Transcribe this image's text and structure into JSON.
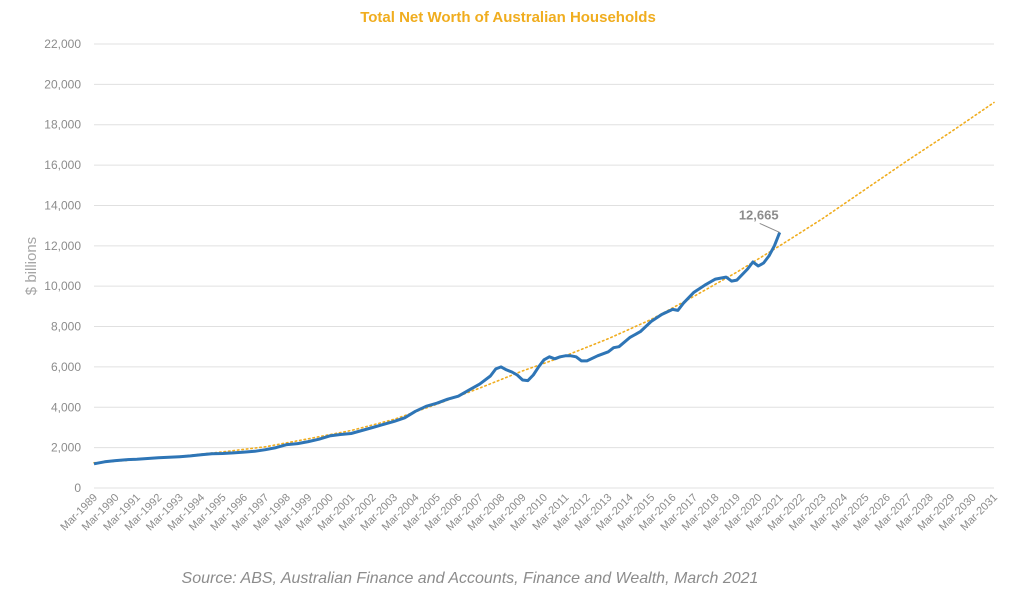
{
  "chart_data": {
    "type": "line",
    "title": "Total Net Worth of Australian Households",
    "ylabel": "$ billions",
    "xlabel": "",
    "source": "Source: ABS, Australian Finance and Accounts, Finance and Wealth, March 2021",
    "ylim": [
      0,
      22000
    ],
    "yticks": [
      "0",
      "2,000",
      "4,000",
      "6,000",
      "8,000",
      "10,000",
      "12,000",
      "14,000",
      "16,000",
      "18,000",
      "20,000",
      "22,000"
    ],
    "ytick_values": [
      0,
      2000,
      4000,
      6000,
      8000,
      10000,
      12000,
      14000,
      16000,
      18000,
      20000,
      22000
    ],
    "x_categories": [
      "Mar-1989",
      "Mar-1990",
      "Mar-1991",
      "Mar-1992",
      "Mar-1993",
      "Mar-1994",
      "Mar-1995",
      "Mar-1996",
      "Mar-1997",
      "Mar-1998",
      "Mar-1999",
      "Mar-2000",
      "Mar-2001",
      "Mar-2002",
      "Mar-2003",
      "Mar-2004",
      "Mar-2005",
      "Mar-2006",
      "Mar-2007",
      "Mar-2008",
      "Mar-2009",
      "Mar-2010",
      "Mar-2011",
      "Mar-2012",
      "Mar-2013",
      "Mar-2014",
      "Mar-2015",
      "Mar-2016",
      "Mar-2017",
      "Mar-2018",
      "Mar-2019",
      "Mar-2020",
      "Mar-2021",
      "Mar-2022",
      "Mar-2023",
      "Mar-2024",
      "Mar-2025",
      "Mar-2026",
      "Mar-2027",
      "Mar-2028",
      "Mar-2029",
      "Mar-2030",
      "Mar-2031"
    ],
    "grid": true,
    "series": [
      {
        "kind": "actual",
        "color": "#2e75b6",
        "points": [
          [
            1989.0,
            1200
          ],
          [
            1989.5,
            1300
          ],
          [
            1990.0,
            1360
          ],
          [
            1990.5,
            1400
          ],
          [
            1991.0,
            1420
          ],
          [
            1991.5,
            1460
          ],
          [
            1992.0,
            1500
          ],
          [
            1992.5,
            1520
          ],
          [
            1993.0,
            1550
          ],
          [
            1993.5,
            1590
          ],
          [
            1994.0,
            1650
          ],
          [
            1994.5,
            1700
          ],
          [
            1995.0,
            1710
          ],
          [
            1995.5,
            1740
          ],
          [
            1996.0,
            1780
          ],
          [
            1996.5,
            1820
          ],
          [
            1997.0,
            1900
          ],
          [
            1997.5,
            2000
          ],
          [
            1998.0,
            2150
          ],
          [
            1998.5,
            2200
          ],
          [
            1999.0,
            2300
          ],
          [
            1999.5,
            2420
          ],
          [
            2000.0,
            2580
          ],
          [
            2000.5,
            2650
          ],
          [
            2001.0,
            2700
          ],
          [
            2001.5,
            2850
          ],
          [
            2002.0,
            3000
          ],
          [
            2002.5,
            3150
          ],
          [
            2003.0,
            3300
          ],
          [
            2003.5,
            3480
          ],
          [
            2004.0,
            3800
          ],
          [
            2004.5,
            4050
          ],
          [
            2005.0,
            4200
          ],
          [
            2005.5,
            4400
          ],
          [
            2006.0,
            4550
          ],
          [
            2006.5,
            4850
          ],
          [
            2007.0,
            5150
          ],
          [
            2007.5,
            5550
          ],
          [
            2007.75,
            5900
          ],
          [
            2008.0,
            6000
          ],
          [
            2008.25,
            5850
          ],
          [
            2008.5,
            5750
          ],
          [
            2008.75,
            5600
          ],
          [
            2009.0,
            5350
          ],
          [
            2009.25,
            5320
          ],
          [
            2009.5,
            5600
          ],
          [
            2009.75,
            6000
          ],
          [
            2010.0,
            6350
          ],
          [
            2010.25,
            6500
          ],
          [
            2010.5,
            6400
          ],
          [
            2010.75,
            6500
          ],
          [
            2011.0,
            6550
          ],
          [
            2011.25,
            6550
          ],
          [
            2011.5,
            6500
          ],
          [
            2011.75,
            6300
          ],
          [
            2012.0,
            6300
          ],
          [
            2012.5,
            6550
          ],
          [
            2013.0,
            6750
          ],
          [
            2013.25,
            6950
          ],
          [
            2013.5,
            7000
          ],
          [
            2014.0,
            7450
          ],
          [
            2014.5,
            7750
          ],
          [
            2015.0,
            8250
          ],
          [
            2015.5,
            8600
          ],
          [
            2016.0,
            8850
          ],
          [
            2016.25,
            8800
          ],
          [
            2016.5,
            9150
          ],
          [
            2017.0,
            9700
          ],
          [
            2017.5,
            10050
          ],
          [
            2018.0,
            10350
          ],
          [
            2018.5,
            10450
          ],
          [
            2018.75,
            10250
          ],
          [
            2019.0,
            10300
          ],
          [
            2019.5,
            10850
          ],
          [
            2019.75,
            11200
          ],
          [
            2020.0,
            11000
          ],
          [
            2020.25,
            11150
          ],
          [
            2020.5,
            11500
          ],
          [
            2020.75,
            12000
          ],
          [
            2021.0,
            12665
          ]
        ]
      },
      {
        "kind": "trend",
        "color": "#f0ad1f",
        "style": "dotted",
        "points": [
          [
            1989,
            1250
          ],
          [
            1991,
            1400
          ],
          [
            1993,
            1570
          ],
          [
            1995,
            1790
          ],
          [
            1997,
            2040
          ],
          [
            1999,
            2440
          ],
          [
            2001,
            2850
          ],
          [
            2003,
            3400
          ],
          [
            2005,
            4150
          ],
          [
            2007,
            4950
          ],
          [
            2009,
            5800
          ],
          [
            2011,
            6550
          ],
          [
            2013,
            7400
          ],
          [
            2015,
            8350
          ],
          [
            2017,
            9500
          ],
          [
            2019,
            10700
          ],
          [
            2021,
            12000
          ],
          [
            2023,
            13350
          ],
          [
            2025,
            14800
          ],
          [
            2027,
            16250
          ],
          [
            2029,
            17650
          ],
          [
            2031,
            19100
          ]
        ]
      }
    ],
    "annotation": {
      "x": 2021.0,
      "y": 12665,
      "label": "12,665"
    }
  },
  "colors": {
    "title": "#f0ad1f",
    "actual_line": "#2e75b6",
    "trend_line": "#f0ad1f",
    "grid": "#e0e0e0",
    "tick_text": "#8c8c8c"
  }
}
